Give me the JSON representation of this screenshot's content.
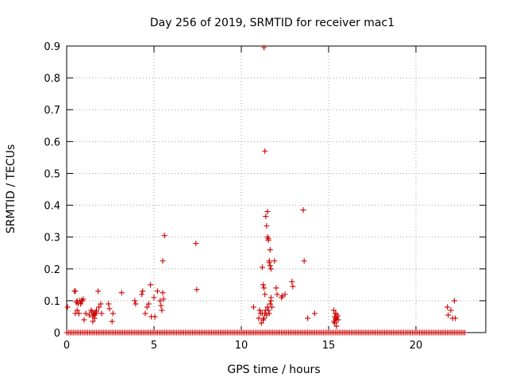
{
  "chart_data": {
    "type": "scatter",
    "title": "Day 256 of 2019, SRMTID for receiver mac1",
    "xlabel": "GPS time / hours",
    "ylabel": "SRMTID / TECUs",
    "xlim": [
      0,
      24
    ],
    "ylim": [
      0,
      0.9
    ],
    "xticks": [
      0,
      5,
      10,
      15,
      20
    ],
    "xtick_labels": [
      "0",
      "5",
      "10",
      "15",
      "20"
    ],
    "yticks": [
      0,
      0.1,
      0.2,
      0.3,
      0.4,
      0.5,
      0.6,
      0.7,
      0.8,
      0.9
    ],
    "ytick_labels": [
      "0",
      "0.1",
      "0.2",
      "0.3",
      "0.4",
      "0.5",
      "0.6",
      "0.7",
      "0.8",
      "0.9"
    ],
    "grid": true,
    "legend": "none",
    "marker": "plus",
    "color": "#cc0000",
    "baseline": {
      "y": 0,
      "x_start": 0,
      "x_end": 22.8,
      "x_step": 0.1
    },
    "series": [
      {
        "x": [
          0.05,
          0.45,
          0.5,
          0.55,
          0.6,
          0.65,
          0.7,
          0.75,
          0.8,
          0.85,
          0.9,
          0.95,
          0.5,
          0.6,
          0.7,
          1.0,
          1.1,
          1.3,
          1.4,
          1.45,
          1.5,
          1.55,
          1.6,
          1.65,
          1.7,
          1.5,
          1.6,
          1.7,
          1.8,
          1.85,
          1.95,
          2.0,
          2.4,
          2.45,
          2.6,
          2.65,
          3.15,
          3.9,
          3.95,
          4.3,
          4.35,
          4.5,
          4.6,
          4.7,
          4.8,
          4.85,
          5.0,
          5.05,
          5.2,
          5.35,
          5.4,
          5.45,
          5.5,
          5.55,
          5.5,
          5.6,
          7.4,
          7.45,
          10.7,
          11.0,
          11.05,
          11.1,
          11.15,
          11.2,
          11.25,
          11.3,
          11.35,
          11.4,
          11.45,
          11.5,
          11.55,
          11.6,
          11.65,
          11.7,
          11.75,
          11.2,
          11.25,
          11.3,
          11.35,
          11.4,
          11.45,
          11.5,
          11.55,
          11.6,
          11.65,
          11.7,
          11.3,
          11.35,
          11.5,
          11.55,
          11.6,
          11.65,
          11.7,
          11.9,
          12.0,
          12.05,
          12.3,
          12.35,
          12.5,
          12.9,
          12.95,
          13.55,
          13.6,
          13.8,
          14.2,
          15.3,
          15.35,
          15.4,
          15.45,
          15.5,
          15.3,
          15.35,
          15.4,
          15.45,
          15.5,
          15.55,
          15.4,
          21.8,
          21.85,
          22.0,
          22.1,
          22.2,
          22.25
        ],
        "y": [
          0.08,
          0.13,
          0.13,
          0.095,
          0.1,
          0.09,
          0.06,
          0.1,
          0.09,
          0.1,
          0.1,
          0.105,
          0.06,
          0.07,
          0.06,
          0.04,
          0.06,
          0.055,
          0.07,
          0.065,
          0.05,
          0.06,
          0.055,
          0.06,
          0.065,
          0.035,
          0.045,
          0.07,
          0.13,
          0.08,
          0.09,
          0.06,
          0.09,
          0.075,
          0.035,
          0.06,
          0.125,
          0.1,
          0.09,
          0.12,
          0.13,
          0.06,
          0.08,
          0.09,
          0.15,
          0.05,
          0.11,
          0.05,
          0.13,
          0.1,
          0.085,
          0.07,
          0.125,
          0.105,
          0.225,
          0.305,
          0.28,
          0.135,
          0.08,
          0.045,
          0.07,
          0.06,
          0.03,
          0.06,
          0.04,
          0.045,
          0.06,
          0.07,
          0.055,
          0.08,
          0.07,
          0.06,
          0.09,
          0.1,
          0.08,
          0.205,
          0.15,
          0.14,
          0.12,
          0.365,
          0.335,
          0.3,
          0.29,
          0.225,
          0.21,
          0.2,
          0.895,
          0.57,
          0.38,
          0.295,
          0.22,
          0.26,
          0.11,
          0.225,
          0.14,
          0.12,
          0.11,
          0.115,
          0.12,
          0.16,
          0.145,
          0.385,
          0.225,
          0.045,
          0.06,
          0.07,
          0.05,
          0.06,
          0.04,
          0.055,
          0.035,
          0.03,
          0.045,
          0.02,
          0.05,
          0.04,
          0.06,
          0.08,
          0.055,
          0.07,
          0.045,
          0.1,
          0.045
        ]
      }
    ]
  }
}
